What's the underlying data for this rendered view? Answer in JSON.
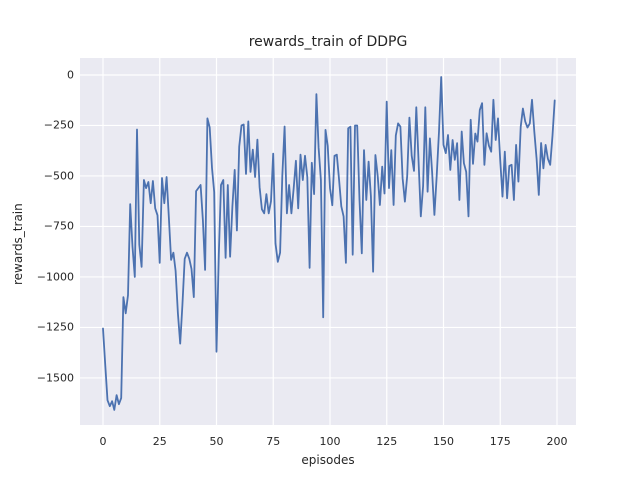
{
  "chart_data": {
    "type": "line",
    "title": "rewards_train of DDPG",
    "xlabel": "episodes",
    "ylabel": "rewards_train",
    "legend": null,
    "grid": true,
    "x_ticks": [
      0,
      25,
      50,
      75,
      100,
      125,
      150,
      175,
      200
    ],
    "y_ticks": [
      0,
      -250,
      -500,
      -750,
      -1000,
      -1250,
      -1500
    ],
    "xlim": [
      -10.13,
      208.37
    ],
    "ylim": [
      -1733,
      84
    ],
    "line_color": "#4c72b0",
    "background_color": "#eaeaf2",
    "grid_color": "#ffffff",
    "text_color": "#262626",
    "x_start": 0,
    "x_step": 1,
    "values": [
      -1255,
      -1440,
      -1610,
      -1640,
      -1615,
      -1658,
      -1585,
      -1630,
      -1600,
      -1100,
      -1180,
      -1090,
      -640,
      -850,
      -1000,
      -270,
      -840,
      -950,
      -520,
      -560,
      -530,
      -635,
      -525,
      -660,
      -695,
      -930,
      -510,
      -635,
      -505,
      -700,
      -915,
      -880,
      -970,
      -1180,
      -1330,
      -1140,
      -910,
      -880,
      -910,
      -960,
      -1100,
      -575,
      -560,
      -545,
      -720,
      -965,
      -215,
      -260,
      -460,
      -580,
      -1370,
      -890,
      -545,
      -520,
      -905,
      -545,
      -900,
      -650,
      -470,
      -770,
      -355,
      -250,
      -245,
      -490,
      -230,
      -480,
      -370,
      -505,
      -320,
      -555,
      -665,
      -685,
      -590,
      -685,
      -625,
      -390,
      -835,
      -925,
      -880,
      -500,
      -255,
      -685,
      -545,
      -685,
      -560,
      -425,
      -660,
      -395,
      -520,
      -400,
      -505,
      -955,
      -435,
      -590,
      -95,
      -360,
      -520,
      -1200,
      -272,
      -350,
      -560,
      -645,
      -400,
      -395,
      -520,
      -650,
      -700,
      -930,
      -264,
      -256,
      -890,
      -250,
      -250,
      -619,
      -883,
      -372,
      -619,
      -429,
      -600,
      -974,
      -396,
      -500,
      -644,
      -454,
      -587,
      -132,
      -560,
      -372,
      -644,
      -300,
      -240,
      -256,
      -511,
      -627,
      -500,
      -211,
      -400,
      -475,
      -160,
      -420,
      -700,
      -550,
      -160,
      -578,
      -314,
      -480,
      -693,
      -500,
      -280,
      -10,
      -346,
      -387,
      -297,
      -470,
      -322,
      -420,
      -338,
      -619,
      -280,
      -437,
      -480,
      -700,
      -222,
      -440,
      -290,
      -330,
      -173,
      -140,
      -445,
      -289,
      -350,
      -380,
      -123,
      -322,
      -215,
      -420,
      -602,
      -380,
      -610,
      -450,
      -445,
      -619,
      -346,
      -528,
      -257,
      -166,
      -230,
      -260,
      -240,
      -123,
      -280,
      -415,
      -594,
      -337,
      -462,
      -346,
      -415,
      -445,
      -300,
      -126
    ]
  }
}
